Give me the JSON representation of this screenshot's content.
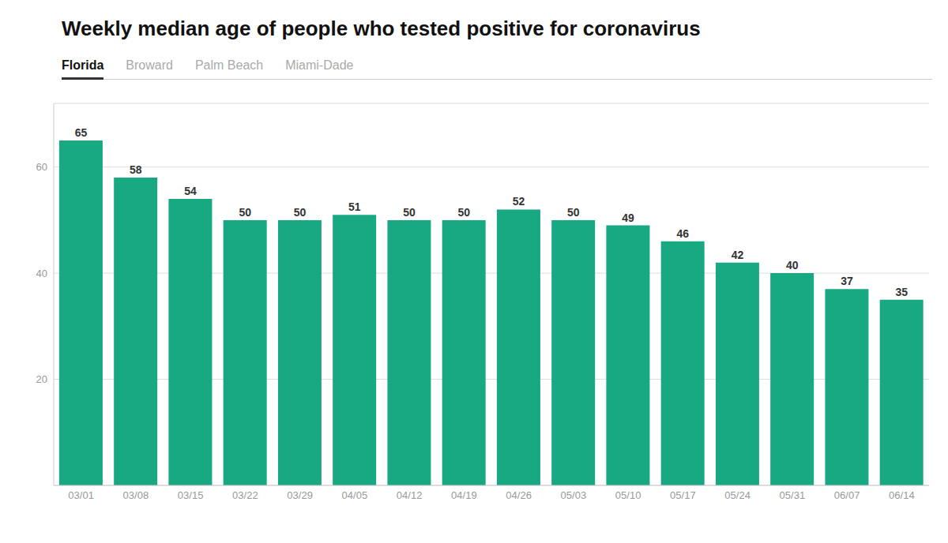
{
  "chart_data": {
    "type": "bar",
    "title": "Weekly median age of people who tested positive for coronavirus",
    "annotations": [
      "Florida",
      "Broward",
      "Palm Beach",
      "Miami-Dade"
    ],
    "categories": [
      "03/01",
      "03/08",
      "03/15",
      "03/22",
      "03/29",
      "04/05",
      "04/12",
      "04/19",
      "04/26",
      "05/03",
      "05/10",
      "05/17",
      "05/24",
      "05/31",
      "06/07",
      "06/14"
    ],
    "values": [
      65,
      58,
      54,
      50,
      50,
      51,
      50,
      50,
      52,
      50,
      49,
      46,
      42,
      40,
      37,
      35
    ],
    "color": "#18A882",
    "ylim": [
      0,
      72
    ],
    "yticks": [
      20,
      40,
      60
    ],
    "grid": true,
    "data_labels": true
  }
}
